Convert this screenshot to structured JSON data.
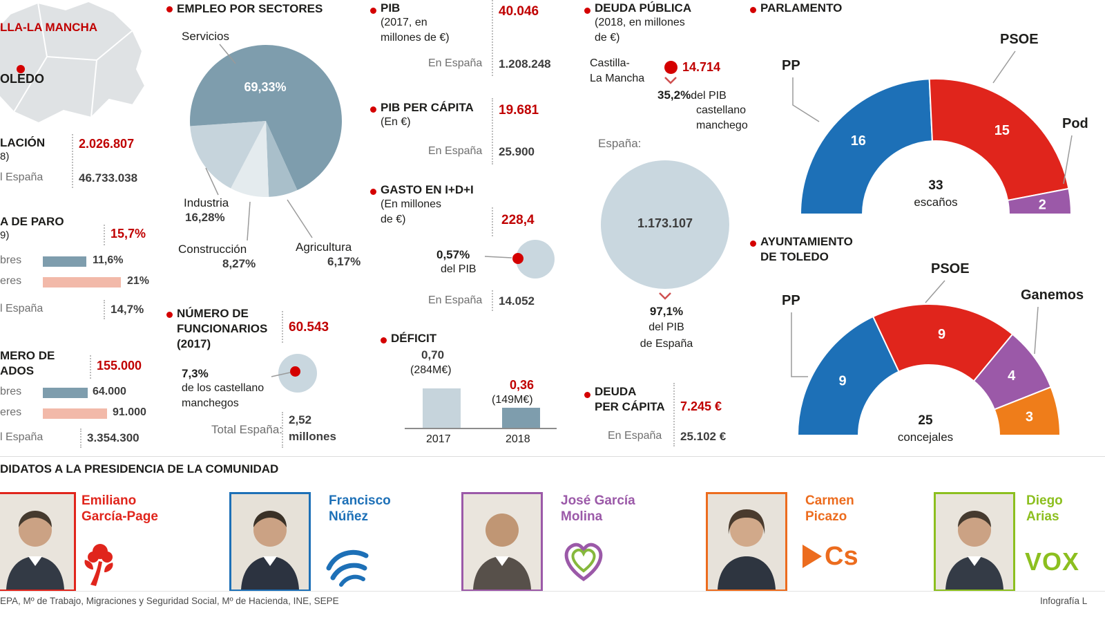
{
  "palette": {
    "red": "#c00000",
    "dot_red": "#d40000",
    "steel_blue": "#7e9dad",
    "light_blue": "#c9d7df",
    "salmon": "#f2b9a9",
    "pp_blue": "#1d70b7",
    "psoe_red": "#e0251c",
    "podemos_purple": "#9b59a8",
    "cs_orange": "#ec6c1e",
    "vox_green": "#8cbf1f"
  },
  "map": {
    "region_label": "LLA-LA MANCHA",
    "city_label": "OLEDO"
  },
  "population": {
    "title_line1": "LACIÓN",
    "title_line2": "8)",
    "value": "2.026.807",
    "espana_label": "l España",
    "espana_value": "46.733.038"
  },
  "paro": {
    "title_line1": "A DE PARO",
    "title_line2": "9)",
    "value": "15,7%",
    "espana_label": "l España",
    "espana_value": "14,7%"
  },
  "parados": {
    "title_line1": "MERO DE",
    "title_line2": "ADOS",
    "value": "155.000",
    "espana_label": "l España",
    "espana_value": "3.354.300"
  },
  "funcionarios": {
    "title_line1": "NÚMERO DE",
    "title_line2": "FUNCIONARIOS",
    "title_line3": "(2017)",
    "value": "60.543",
    "pct": "7,3%",
    "desc_line1": "de los castellano",
    "desc_line2": "manchegos",
    "total_label": "Total España:",
    "total_line1": "2,52",
    "total_line2": "millones"
  },
  "pib": {
    "title": "PIB",
    "sub1": "(2017, en",
    "sub2": "millones de €)",
    "value": "40.046",
    "espana_label": "En España",
    "espana_value": "1.208.248"
  },
  "pib_capita": {
    "title": "PIB PER CÁPITA",
    "sub1": "(En €)",
    "value": "19.681",
    "espana_label": "En España",
    "espana_value": "25.900"
  },
  "idi": {
    "title": "GASTO EN I+D+I",
    "sub1": "(En millones",
    "sub2": "de €)",
    "value": "228,4",
    "pct": "0,57%",
    "pct_sub": "del PIB",
    "espana_label": "En España",
    "espana_value": "14.052"
  },
  "deuda": {
    "title": "DEUDA PÚBLICA",
    "sub1": "(2018, en millones",
    "sub2": "de €)",
    "clm_line1": "Castilla-",
    "clm_line2": "La Mancha",
    "clm_value": "14.714",
    "clm_pct": "35,2%",
    "clm_pct_sub": "del PIB",
    "clm_pct_line2": "castellano",
    "clm_pct_line3": "manchego",
    "espana_label": "España:",
    "espana_value": "1.173.107",
    "espana_pct": "97,1%",
    "espana_pct_line2": "del PIB",
    "espana_pct_line3": "de España"
  },
  "deuda_capita": {
    "title_line1": "DEUDA",
    "title_line2": "PER CÁPITA",
    "value": "7.245 €",
    "espana_label": "En España",
    "espana_value": "25.102 €"
  },
  "candidatos": {
    "title": "DIDATOS A LA PRESIDENCIA DE LA COMUNIDAD",
    "list": [
      {
        "name_line1": "Emiliano",
        "name_line2": "García-Page",
        "color": "#e0251c",
        "party_icon": "psoe-logo",
        "logo_text": ""
      },
      {
        "name_line1": "Francisco",
        "name_line2": "Núñez",
        "color": "#1d70b7",
        "party_icon": "pp-logo",
        "logo_text": ""
      },
      {
        "name_line1": "José García",
        "name_line2": "Molina",
        "color": "#9b59a8",
        "party_icon": "podemos-logo",
        "logo_text": ""
      },
      {
        "name_line1": "Carmen",
        "name_line2": "Picazo",
        "color": "#ec6c1e",
        "party_icon": "cs-logo",
        "logo_text": "Cs"
      },
      {
        "name_line1": "Diego",
        "name_line2": "Arias",
        "color": "#8cbf1f",
        "party_icon": "vox-logo",
        "logo_text": "VOX"
      }
    ]
  },
  "footer": {
    "sources": "EPA, Mº de Trabajo, Migraciones y Seguridad Social, Mº de Hacienda, INE, SEPE",
    "credit": "Infografía L"
  },
  "chart_data": [
    {
      "id": "sectors-pie",
      "type": "pie",
      "title": "EMPLEO POR SECTORES",
      "labels": [
        "Servicios",
        "Agricultura",
        "Construcción",
        "Industria"
      ],
      "values": [
        69.33,
        6.17,
        8.27,
        16.28
      ],
      "display": [
        "69,33%",
        "6,17%",
        "8,27%",
        "16,28%"
      ],
      "colors": [
        "#7e9dad",
        "#a9bfca",
        "#e4ebee",
        "#c6d4dc"
      ],
      "start_angle_deg": 266
    },
    {
      "id": "deficit-bars",
      "type": "bar",
      "title": "DÉFICIT",
      "categories": [
        "2017",
        "2018"
      ],
      "values": [
        0.7,
        0.36
      ],
      "value_labels": [
        "0,70",
        "0,36"
      ],
      "notes": [
        "(284M€)",
        "(149M€)"
      ],
      "colors": [
        "#c6d4dc",
        "#7e9dad"
      ]
    },
    {
      "id": "parlamento",
      "type": "half_donut",
      "title": "PARLAMENTO",
      "total": 33,
      "total_label": "escaños",
      "segments": [
        {
          "label": "PP",
          "seats": 16,
          "color": "#1d70b7"
        },
        {
          "label": "PSOE",
          "seats": 15,
          "color": "#e0251c"
        },
        {
          "label": "Pod",
          "seats": 2,
          "color": "#9b59a8"
        }
      ]
    },
    {
      "id": "toledo",
      "type": "half_donut",
      "title": "AYUNTAMIENTO DE TOLEDO",
      "title_line1": "AYUNTAMIENTO",
      "title_line2": "DE TOLEDO",
      "total": 25,
      "total_label": "concejales",
      "segments": [
        {
          "label": "PP",
          "seats": 9,
          "color": "#1d70b7"
        },
        {
          "label": "PSOE",
          "seats": 9,
          "color": "#e0251c"
        },
        {
          "label": "Ganemos",
          "seats": 4,
          "color": "#9b59a8"
        },
        {
          "label": "",
          "seats": 3,
          "color": "#ef7d1a"
        }
      ]
    },
    {
      "id": "paro-bars",
      "type": "bar",
      "orientation": "horizontal",
      "categories": [
        "bres",
        "eres"
      ],
      "values": [
        11.6,
        21
      ],
      "value_labels": [
        "11,6%",
        "21%"
      ],
      "colors": [
        "#7e9dad",
        "#f2b9a9"
      ]
    },
    {
      "id": "parados-bars",
      "type": "bar",
      "orientation": "horizontal",
      "categories": [
        "bres",
        "eres"
      ],
      "values": [
        64000,
        91000
      ],
      "value_labels": [
        "64.000",
        "91.000"
      ],
      "colors": [
        "#7e9dad",
        "#f2b9a9"
      ]
    }
  ]
}
